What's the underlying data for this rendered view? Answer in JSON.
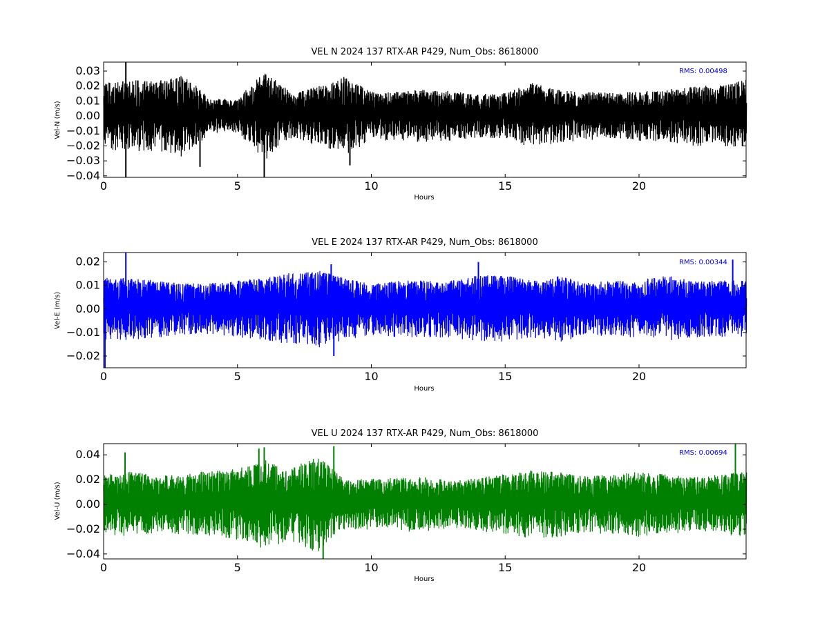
{
  "chart_data": [
    {
      "type": "line",
      "title": "VEL N 2024 137 RTX-AR  P429, Num_Obs: 8618000",
      "xlabel": "Hours",
      "ylabel": "Vel-N (m/s)",
      "xlim": [
        0,
        24
      ],
      "ylim": [
        -0.041,
        0.036
      ],
      "x_ticks": [
        0,
        5,
        10,
        15,
        20
      ],
      "y_ticks": [
        -0.04,
        -0.03,
        -0.02,
        -0.01,
        0.0,
        0.01,
        0.02,
        0.03
      ],
      "y_tick_labels": [
        "−0.04",
        "−0.03",
        "−0.02",
        "−0.01",
        "0.00",
        "0.01",
        "0.02",
        "0.03"
      ],
      "color": "#000000",
      "annotation": "RMS:  0.00498",
      "annotation_color": "#0000ff",
      "envelope_hours": [
        0,
        1,
        2,
        3,
        4,
        5,
        6,
        7,
        8,
        9,
        10,
        11,
        12,
        13,
        14,
        15,
        16,
        17,
        18,
        19,
        20,
        21,
        22,
        23,
        24
      ],
      "envelope_amplitude": [
        0.02,
        0.022,
        0.021,
        0.025,
        0.01,
        0.011,
        0.027,
        0.014,
        0.018,
        0.024,
        0.015,
        0.015,
        0.016,
        0.015,
        0.013,
        0.014,
        0.02,
        0.016,
        0.015,
        0.014,
        0.015,
        0.016,
        0.018,
        0.019,
        0.022
      ],
      "spikes": [
        {
          "x": 0.83,
          "y": 0.036
        },
        {
          "x": 0.83,
          "y": -0.041
        },
        {
          "x": 3.6,
          "y": -0.034
        },
        {
          "x": 6.0,
          "y": -0.041
        },
        {
          "x": 9.2,
          "y": -0.033
        }
      ]
    },
    {
      "type": "line",
      "title": "VEL E 2024 137 RTX-AR  P429, Num_Obs: 8618000",
      "xlabel": "Hours",
      "ylabel": "Vel-E (m/s)",
      "xlim": [
        0,
        24
      ],
      "ylim": [
        -0.025,
        0.024
      ],
      "x_ticks": [
        0,
        5,
        10,
        15,
        20
      ],
      "y_ticks": [
        -0.02,
        -0.01,
        0.0,
        0.01,
        0.02
      ],
      "y_tick_labels": [
        "−0.02",
        "−0.01",
        "0.00",
        "0.01",
        "0.02"
      ],
      "color": "#0000ff",
      "annotation": "RMS:  0.00344",
      "annotation_color": "#0000ff",
      "envelope_hours": [
        0,
        1,
        2,
        3,
        4,
        5,
        6,
        7,
        8,
        9,
        10,
        11,
        12,
        13,
        14,
        15,
        16,
        17,
        18,
        19,
        20,
        21,
        22,
        23,
        24
      ],
      "envelope_amplitude": [
        0.012,
        0.012,
        0.011,
        0.01,
        0.01,
        0.011,
        0.012,
        0.014,
        0.015,
        0.012,
        0.01,
        0.011,
        0.011,
        0.011,
        0.013,
        0.013,
        0.011,
        0.013,
        0.01,
        0.011,
        0.011,
        0.013,
        0.011,
        0.011,
        0.011
      ],
      "spikes": [
        {
          "x": 0.83,
          "y": 0.024
        },
        {
          "x": 0.05,
          "y": -0.025
        },
        {
          "x": 8.5,
          "y": 0.019
        },
        {
          "x": 8.6,
          "y": -0.02
        },
        {
          "x": 14.0,
          "y": 0.02
        },
        {
          "x": 23.5,
          "y": 0.021
        }
      ]
    },
    {
      "type": "line",
      "title": "VEL U 2024 137 RTX-AR  P429, Num_Obs: 8618000",
      "xlabel": "Hours",
      "ylabel": "Vel-U (m/s)",
      "xlim": [
        0,
        24
      ],
      "ylim": [
        -0.044,
        0.049
      ],
      "x_ticks": [
        0,
        5,
        10,
        15,
        20
      ],
      "y_ticks": [
        -0.04,
        -0.02,
        0.0,
        0.02,
        0.04
      ],
      "y_tick_labels": [
        "−0.04",
        "−0.02",
        "0.00",
        "0.02",
        "0.04"
      ],
      "color": "#008000",
      "annotation": "RMS:  0.00694",
      "annotation_color": "#0000ff",
      "envelope_hours": [
        0,
        1,
        2,
        3,
        4,
        5,
        6,
        7,
        8,
        9,
        10,
        11,
        12,
        13,
        14,
        15,
        16,
        17,
        18,
        19,
        20,
        21,
        22,
        23,
        24
      ],
      "envelope_amplitude": [
        0.022,
        0.024,
        0.021,
        0.022,
        0.025,
        0.026,
        0.033,
        0.027,
        0.036,
        0.018,
        0.019,
        0.02,
        0.02,
        0.017,
        0.02,
        0.022,
        0.025,
        0.024,
        0.021,
        0.022,
        0.024,
        0.022,
        0.02,
        0.022,
        0.024
      ],
      "spikes": [
        {
          "x": 0.8,
          "y": 0.042
        },
        {
          "x": 5.8,
          "y": 0.045
        },
        {
          "x": 6.0,
          "y": 0.046
        },
        {
          "x": 8.2,
          "y": -0.044
        },
        {
          "x": 8.6,
          "y": 0.047
        },
        {
          "x": 23.6,
          "y": 0.049
        }
      ]
    }
  ]
}
